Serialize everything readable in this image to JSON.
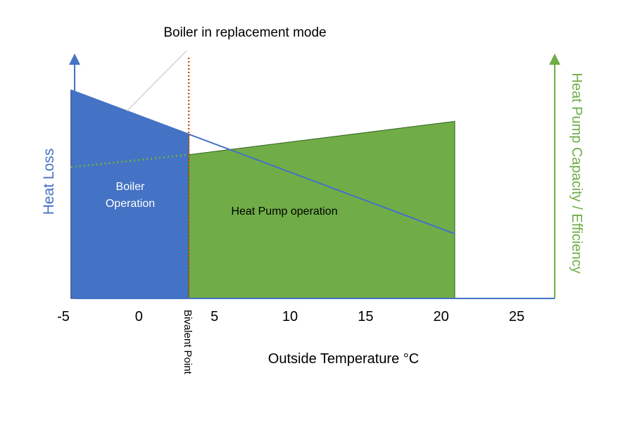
{
  "chart_data": {
    "type": "area",
    "title": "",
    "xlabel": "Outside Temperature °C",
    "ylabel_left": "Heat Loss",
    "ylabel_right": "Heat Pump Capacity / Efficiency",
    "xlim": [
      -5,
      27.5
    ],
    "x_ticks": [
      -5,
      0,
      5,
      10,
      15,
      20,
      25
    ],
    "x_tick_labels": [
      "-5",
      "0",
      "5",
      "10",
      "15",
      "20",
      "25"
    ],
    "bivalent_point": {
      "label": "Bivalent Point",
      "x": 3.3
    },
    "colors": {
      "heat_loss": "#4472c4",
      "heat_pump": "#70ad47",
      "bivalent_line": "#c55a11",
      "leader": "#bfbfbf",
      "text": "#000000",
      "region_text": "#ffffff"
    },
    "series": [
      {
        "name": "Heat Loss",
        "x": [
          -4.5,
          20.9
        ],
        "y": [
          1.0,
          0.31
        ]
      },
      {
        "name": "Heat Pump Capacity",
        "x": [
          -4.5,
          3.3,
          20.9
        ],
        "y": [
          0.63,
          0.69,
          0.85
        ]
      }
    ],
    "regions": [
      {
        "label_lines": [
          "Boiler",
          "Operation"
        ],
        "x_from": -4.5,
        "x_to": 3.3
      },
      {
        "label": "Heat Pump operation",
        "x_from": 3.3,
        "x_to": 20.9
      }
    ],
    "annotations": [
      {
        "text": "Boiler in replacement mode"
      }
    ]
  }
}
